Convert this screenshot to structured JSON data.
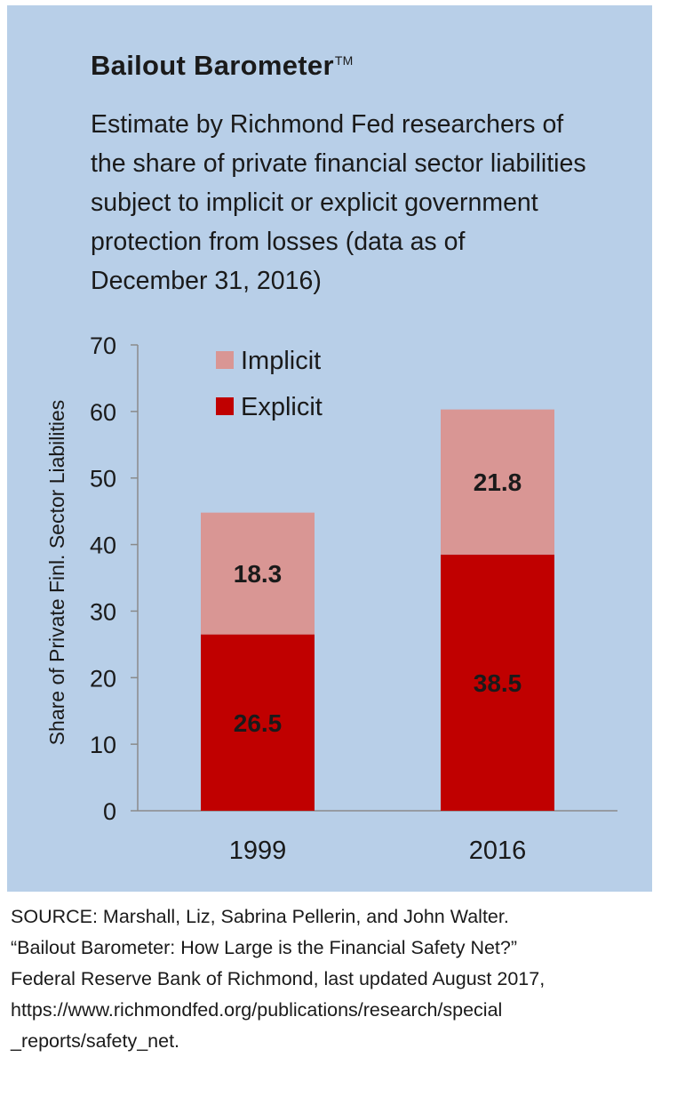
{
  "header": {
    "title": "Bailout Barometer",
    "trademark": "TM",
    "subtitle": "Estimate by Richmond Fed researchers of the share of private financial sector liabilities subject to implicit or explicit government protection from losses (data as of December 31, 2016)"
  },
  "colors": {
    "background": "#b8cfe8",
    "explicit": "#c00000",
    "implicit": "#d99694",
    "axis": "#8a8a8a"
  },
  "chart_data": {
    "type": "bar",
    "stacked": true,
    "categories": [
      "1999",
      "2016"
    ],
    "series": [
      {
        "name": "Explicit",
        "values": [
          26.5,
          38.5
        ]
      },
      {
        "name": "Implicit",
        "values": [
          18.3,
          21.8
        ]
      }
    ],
    "ylabel": "Share of Private Finl. Sector Liabilities",
    "ylim": [
      0,
      70
    ],
    "yticks": [
      0,
      10,
      20,
      30,
      40,
      50,
      60,
      70
    ],
    "legend": {
      "placement": "top-left",
      "entries": [
        "Implicit",
        "Explicit"
      ]
    },
    "grid": false
  },
  "source": {
    "lines": [
      "SOURCE: Marshall, Liz, Sabrina Pellerin, and John Walter.",
      "“Bailout Barometer: How Large is the Financial Safety Net?”",
      "Federal Reserve Bank of Richmond, last updated August 2017,",
      "https://www.richmondfed.org/publications/research/special",
      "_reports/safety_net."
    ]
  }
}
